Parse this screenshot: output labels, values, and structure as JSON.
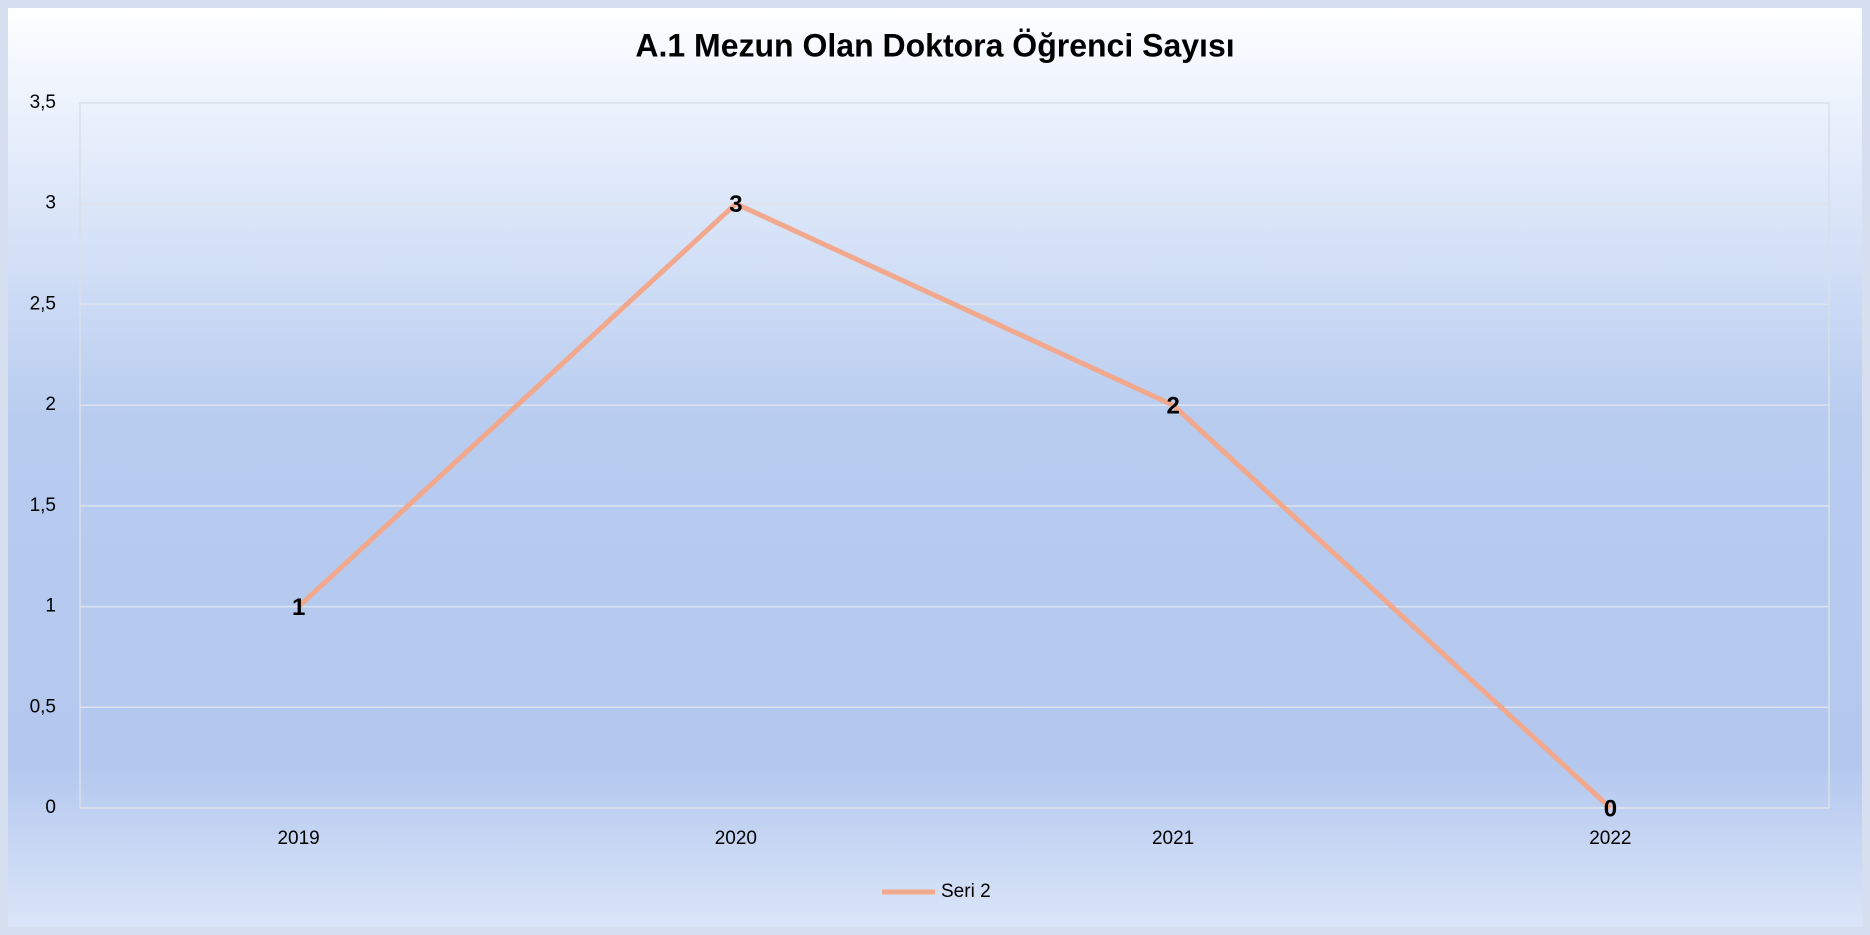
{
  "chart_data": {
    "type": "line",
    "title": "A.1 Mezun Olan Doktora Öğrenci Sayısı",
    "categories": [
      "2019",
      "2020",
      "2021",
      "2022"
    ],
    "series": [
      {
        "name": "Seri 2",
        "color": "#f2a88c",
        "values": [
          1,
          3,
          2,
          0
        ]
      }
    ],
    "ylim": [
      0,
      3.5
    ],
    "yticks": [
      0,
      {
        "value": 0.5,
        "label": "0,5"
      },
      1,
      {
        "value": 1.5,
        "label": "1,5"
      },
      2,
      {
        "value": 2.5,
        "label": "2,5"
      },
      3,
      {
        "value": 3.5,
        "label": "3,5"
      }
    ],
    "grid": true,
    "legend": "bottom"
  }
}
